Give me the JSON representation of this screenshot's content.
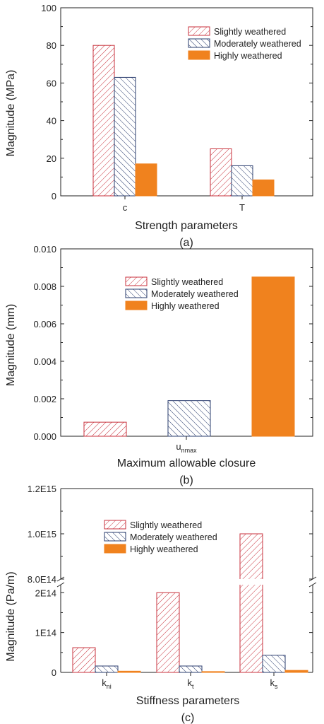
{
  "chart_data": [
    {
      "type": "bar",
      "categories": [
        "c",
        "T"
      ],
      "series": [
        {
          "name": "Slightly weathered",
          "values": [
            80,
            25
          ]
        },
        {
          "name": "Moderately weathered",
          "values": [
            63,
            16
          ]
        },
        {
          "name": "Highly weathered",
          "values": [
            17,
            8.5
          ]
        }
      ],
      "xlabel": "Strength parameters",
      "ylabel": "Magnitude (MPa)",
      "caption": "(a)",
      "ylim": [
        0,
        100
      ],
      "yticks": [
        "0",
        "20",
        "40",
        "60",
        "80",
        "100"
      ],
      "legend_position": "top-right"
    },
    {
      "type": "bar",
      "categories": [
        "u_nmax"
      ],
      "category_labels": [
        {
          "main": "u",
          "sub": "nmax"
        }
      ],
      "series": [
        {
          "name": "Slightly weathered",
          "values": [
            0.00075
          ]
        },
        {
          "name": "Moderately weathered",
          "values": [
            0.0019
          ]
        },
        {
          "name": "Highly weathered",
          "values": [
            0.0085
          ]
        }
      ],
      "xlabel": "Maximum allowable closure",
      "ylabel": "Magnitude (mm)",
      "caption": "(b)",
      "ylim": [
        0,
        0.01
      ],
      "yticks": [
        "0.000",
        "0.002",
        "0.004",
        "0.006",
        "0.008",
        "0.010"
      ],
      "legend_position": "top-center"
    },
    {
      "type": "bar",
      "categories": [
        "k_ni",
        "k_t",
        "k_s"
      ],
      "category_labels": [
        {
          "main": "k",
          "sub": "ni"
        },
        {
          "main": "k",
          "sub": "t"
        },
        {
          "main": "k",
          "sub": "s"
        }
      ],
      "series": [
        {
          "name": "Slightly weathered",
          "values": [
            62000000000000.0,
            200000000000000.0,
            1000000000000000.0
          ]
        },
        {
          "name": "Moderately weathered",
          "values": [
            16000000000000.0,
            16000000000000.0,
            43000000000000.0
          ]
        },
        {
          "name": "Highly weathered",
          "values": [
            3000000000000.0,
            2000000000000.0,
            5000000000000.0
          ]
        }
      ],
      "xlabel": "Stiffness parameters",
      "ylabel": "Magnitude (Pa/m)",
      "caption": "(c)",
      "axis_break": {
        "lower": [
          0,
          220000000000000.0
        ],
        "upper": [
          800000000000000.0,
          1200000000000000.0
        ]
      },
      "yticks_lower": [
        "0",
        "1E14",
        "2E14"
      ],
      "yticks_upper": [
        "8.0E14",
        "1.0E15",
        "1.2E15"
      ],
      "legend_position": "top-center"
    }
  ],
  "colors": {
    "slightly": "#c8323c",
    "moderately": "#2a3c6e",
    "highly": "#f0821e",
    "axis": "#222222"
  }
}
